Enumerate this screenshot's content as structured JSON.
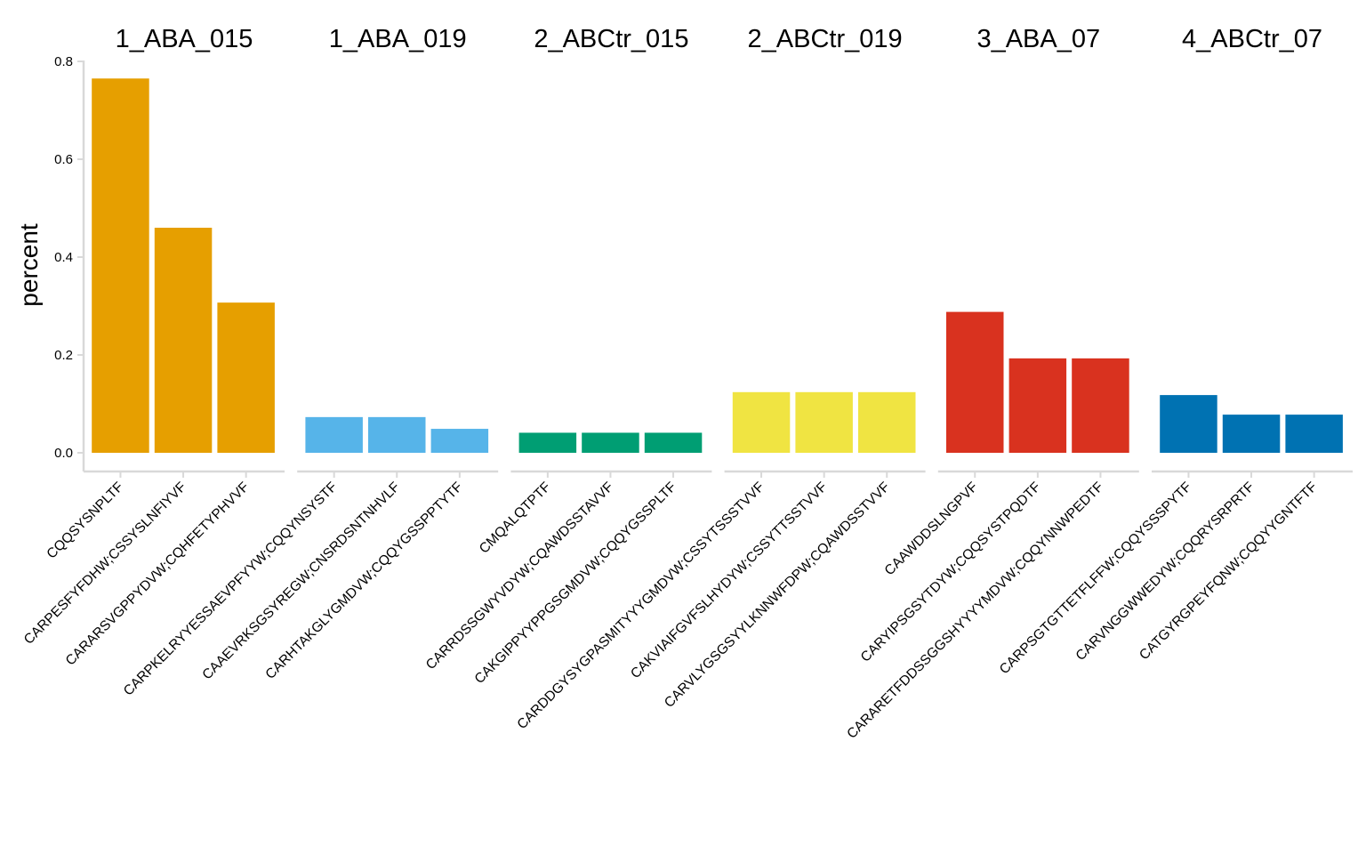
{
  "chart_data": {
    "type": "bar",
    "ylabel": "percent",
    "xlabel": "",
    "ylim": [
      0,
      0.8
    ],
    "yticks": [
      "0.0",
      "0.2",
      "0.4",
      "0.6",
      "0.8"
    ],
    "grid": false,
    "legend": "none",
    "panels": [
      {
        "title": "1_ABA_015",
        "color": "#E69F00",
        "categories": [
          "CQQSYSNPLTF",
          "CARPESFYFDHW;CSSYSLNFIYVF",
          "CARARSVGPPYDVW;CQHFETYPHVVF"
        ],
        "values": [
          0.765,
          0.46,
          0.307
        ]
      },
      {
        "title": "1_ABA_019",
        "color": "#56B4E9",
        "categories": [
          "CARPKELRYYESSAEVPFYYW;CQQYNSYSTF",
          "CAAEVRKSGSYREGW;CNSRDSNTNHVLF",
          "CARHTAKGLYGMDVW;CQQYGSSPPTYTF"
        ],
        "values": [
          0.073,
          0.073,
          0.049
        ]
      },
      {
        "title": "2_ABCtr_015",
        "color": "#009E73",
        "categories": [
          "CMQALQTPTF",
          "CARRDSSGWYVDYW;CQAWDSSTAVVF",
          "CAKGIPPYYPPGSGMDVW;CQQYGSSPLTF"
        ],
        "values": [
          0.041,
          0.041,
          0.041
        ]
      },
      {
        "title": "2_ABCtr_019",
        "color": "#F0E442",
        "categories": [
          "CARDDGYSYGPASMITYYYGMDVW;CSSYTSSSTVVF",
          "CAKVIAIFGVFSLHYDYW;CSSYTTSSTVVF",
          "CARVLYGSGSYYLKNNWFDPW;CQAWDSSTVVF"
        ],
        "values": [
          0.124,
          0.124,
          0.124
        ]
      },
      {
        "title": "3_ABA_07",
        "color": "#D9321F",
        "categories": [
          "CAAWDDSLNGPVF",
          "CARYIPSGSYTDYW;CQQSYSTPQDTF",
          "CARARETFDDSSGGSHYYYYMDVW;CQQYNNWPEDTF"
        ],
        "values": [
          0.288,
          0.193,
          0.193
        ]
      },
      {
        "title": "4_ABCtr_07",
        "color": "#0072B2",
        "categories": [
          "CARPSGTGTTETFLFFW;CQQYSSSPYTF",
          "CARVNGGWWEDYW;CQQRYSRPRTF",
          "CATGYRGPEYFQNW;CQQYYGNTFTF"
        ],
        "values": [
          0.118,
          0.078,
          0.078
        ]
      }
    ]
  }
}
